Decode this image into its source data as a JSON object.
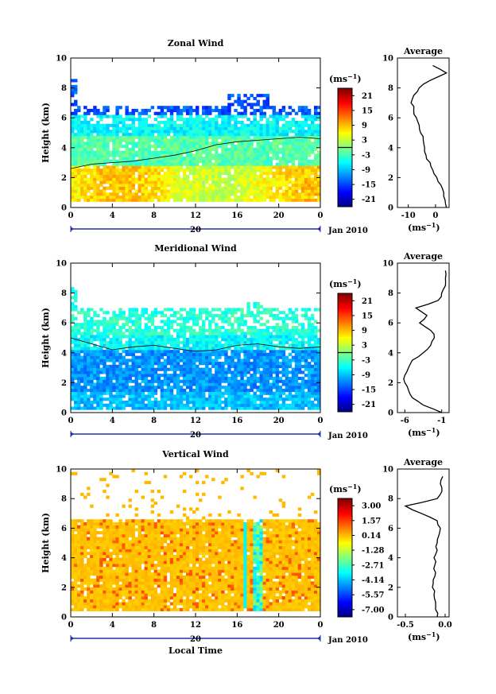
{
  "figure": {
    "x_common": {
      "ticks": [
        "0",
        "4",
        "8",
        "12",
        "16",
        "20",
        "0"
      ],
      "day_label": "20",
      "month_label": "Jan 2010",
      "xlabel": "Local Time"
    },
    "avg_title": "Average"
  },
  "chart_data": [
    {
      "type": "heatmap",
      "title": "Zonal Wind",
      "ylabel": "Height (km)",
      "x_range_hours": [
        0,
        24
      ],
      "ylim": [
        0,
        10
      ],
      "yticks": [
        "0",
        "2",
        "4",
        "6",
        "8",
        "10"
      ],
      "colorbar": {
        "unit": "(ms-1)",
        "ticks": [
          "21",
          "15",
          "9",
          "3",
          "-3",
          "-9",
          "-15",
          "-21"
        ],
        "range": [
          -24,
          24
        ],
        "zero_line": true
      },
      "field_description_levels": [
        {
          "height_km": [
            0.5,
            3.0
          ],
          "value_ms": 6
        },
        {
          "height_km": [
            3.0,
            4.7
          ],
          "value_ms": -2
        },
        {
          "height_km": [
            4.7,
            6.5
          ],
          "value_ms": -6
        },
        {
          "height_km": [
            6.5,
            7.0
          ],
          "value_ms": -14
        }
      ],
      "profile": {
        "title": "Average",
        "xlabel": "(ms-1)",
        "xticks": [
          "-10",
          "0"
        ],
        "xlim": [
          -14,
          5
        ],
        "height_km": [
          0.0,
          0.5,
          1.0,
          1.5,
          2.0,
          2.5,
          3.0,
          3.5,
          4.0,
          4.5,
          5.0,
          5.5,
          6.0,
          6.5,
          7.0,
          7.5,
          8.0,
          8.5,
          9.0,
          9.5
        ],
        "values": [
          4.0,
          3.5,
          3.0,
          2.0,
          0.5,
          -1.0,
          -2.0,
          -3.5,
          -4.0,
          -4.5,
          -5.5,
          -6.0,
          -7.0,
          -8.0,
          -9.0,
          -8.0,
          -6.0,
          -2.0,
          4.0,
          -1.0
        ]
      }
    },
    {
      "type": "heatmap",
      "title": "Meridional Wind",
      "ylabel": "Height (km)",
      "x_range_hours": [
        0,
        24
      ],
      "ylim": [
        0,
        10
      ],
      "yticks": [
        "0",
        "2",
        "4",
        "6",
        "8",
        "10"
      ],
      "colorbar": {
        "unit": "(ms-1)",
        "ticks": [
          "21",
          "15",
          "9",
          "3",
          "-3",
          "-9",
          "-15",
          "-21"
        ],
        "range": [
          -24,
          24
        ],
        "zero_line": true
      },
      "profile": {
        "title": "Average",
        "xlabel": "(ms-1)",
        "xticks": [
          "-6",
          "-1"
        ],
        "xlim": [
          -7,
          0
        ],
        "height_km": [
          0.0,
          0.5,
          1.0,
          1.5,
          2.0,
          2.5,
          3.0,
          3.5,
          4.0,
          4.5,
          5.0,
          5.5,
          6.0,
          6.5,
          7.0,
          7.5,
          8.0,
          8.5,
          9.0,
          9.5
        ],
        "values": [
          -1.0,
          -3.5,
          -5.0,
          -5.5,
          -6.0,
          -6.0,
          -5.5,
          -5.0,
          -3.5,
          -2.5,
          -2.0,
          -2.5,
          -4.0,
          -3.0,
          -4.5,
          -1.5,
          -1.0,
          -0.5,
          -0.5,
          -0.5
        ]
      }
    },
    {
      "type": "heatmap",
      "title": "Vertical Wind",
      "ylabel": "Height (km)",
      "x_range_hours": [
        0,
        24
      ],
      "ylim": [
        0,
        10
      ],
      "yticks": [
        "0",
        "2",
        "4",
        "6",
        "8",
        "10"
      ],
      "colorbar": {
        "unit": "(ms-1)",
        "ticks": [
          "3.00",
          "1.57",
          "0.14",
          "-1.28",
          "-2.71",
          "-4.14",
          "-5.57",
          "-7.00"
        ],
        "range": [
          -7.7,
          3.7
        ],
        "zero_line": false
      },
      "profile": {
        "title": "Average",
        "xlabel": "(ms-1)",
        "xticks": [
          "-0.5",
          "0.0"
        ],
        "xlim": [
          -0.6,
          0.05
        ],
        "height_km": [
          0.0,
          0.5,
          1.0,
          1.5,
          2.0,
          2.5,
          3.0,
          3.5,
          4.0,
          4.5,
          5.0,
          5.5,
          6.0,
          6.5,
          7.0,
          7.5,
          8.0,
          8.5,
          9.0,
          9.5
        ],
        "values": [
          -0.1,
          -0.12,
          -0.12,
          -0.14,
          -0.16,
          -0.15,
          -0.12,
          -0.13,
          -0.14,
          -0.1,
          -0.1,
          -0.08,
          -0.06,
          -0.1,
          -0.3,
          -0.5,
          -0.1,
          -0.04,
          -0.06,
          -0.03
        ]
      }
    }
  ]
}
